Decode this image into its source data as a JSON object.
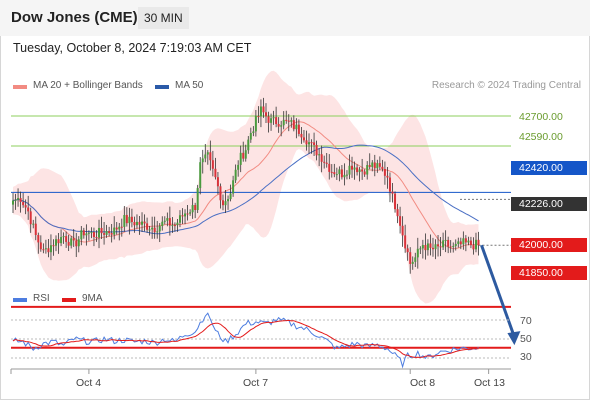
{
  "header": {
    "title": "Dow Jones (CME)",
    "interval": "30 MIN"
  },
  "datetime": "Tuesday, October 8, 2024 7:19:03 AM CET",
  "legend": [
    {
      "label": "MA 20 + Bollinger Bands",
      "color": "#f28b82"
    },
    {
      "label": "MA 50",
      "color": "#2b5aa8"
    }
  ],
  "copyright": "Research © 2024 Trading Central",
  "colors": {
    "up": "#4a9a3e",
    "down": "#d8323a",
    "wick": "#333333",
    "band_fill": "#fde4e4",
    "ma20": "#f28b82",
    "ma50": "#4a6fc4",
    "resistance_green": "#8ccf5c",
    "pivot_blue": "#1556c8",
    "support_red": "#e31b1b",
    "arrow": "#2d5aa0",
    "rsi": "#4d7de0",
    "rsi_ma": "#e31b1b"
  },
  "chart_data": [
    {
      "type": "candlestick",
      "title": "Dow Jones (CME)",
      "interval": "30 MIN",
      "ylim": [
        41800,
        42880
      ],
      "x_ticks": [
        "Oct 4",
        "Oct 7",
        "Oct 8",
        "Oct 13"
      ],
      "x_tick_index": [
        30,
        96,
        157,
        188
      ],
      "levels": [
        {
          "value": 42700.0,
          "label": "42700.00",
          "style": "green"
        },
        {
          "value": 42590.0,
          "label": "42590.00",
          "style": "green"
        },
        {
          "value": 42420.0,
          "label": "42420.00",
          "style": "blue"
        },
        {
          "value": 42226.0,
          "label": "42226.00",
          "style": "dark",
          "current": true
        },
        {
          "value": 42000.0,
          "label": "42000.00",
          "style": "red"
        },
        {
          "value": 41850.0,
          "label": "41850.00",
          "style": "red"
        }
      ],
      "forecast": {
        "from_index": 184,
        "from_value": 42226,
        "to_index": 197,
        "to_value": 41860
      },
      "series": [
        {
          "name": "MA 20 + Bollinger Bands",
          "kind": "bollinger"
        },
        {
          "name": "MA 50",
          "kind": "ma"
        }
      ],
      "price_anchors": [
        [
          0,
          42390
        ],
        [
          3,
          42400
        ],
        [
          6,
          42350
        ],
        [
          9,
          42260
        ],
        [
          12,
          42200
        ],
        [
          16,
          42235
        ],
        [
          20,
          42260
        ],
        [
          24,
          42225
        ],
        [
          28,
          42275
        ],
        [
          32,
          42265
        ],
        [
          36,
          42275
        ],
        [
          40,
          42280
        ],
        [
          44,
          42320
        ],
        [
          48,
          42310
        ],
        [
          52,
          42300
        ],
        [
          56,
          42290
        ],
        [
          60,
          42310
        ],
        [
          64,
          42300
        ],
        [
          68,
          42345
        ],
        [
          72,
          42370
        ],
        [
          74,
          42520
        ],
        [
          77,
          42550
        ],
        [
          80,
          42470
        ],
        [
          83,
          42380
        ],
        [
          86,
          42420
        ],
        [
          89,
          42530
        ],
        [
          92,
          42580
        ],
        [
          94,
          42640
        ],
        [
          98,
          42720
        ],
        [
          102,
          42680
        ],
        [
          106,
          42680
        ],
        [
          110,
          42670
        ],
        [
          114,
          42640
        ],
        [
          118,
          42590
        ],
        [
          122,
          42550
        ],
        [
          126,
          42500
        ],
        [
          130,
          42490
        ],
        [
          134,
          42520
        ],
        [
          138,
          42500
        ],
        [
          142,
          42520
        ],
        [
          146,
          42500
        ],
        [
          148,
          42480
        ],
        [
          150,
          42400
        ],
        [
          152,
          42350
        ],
        [
          154,
          42270
        ],
        [
          157,
          42160
        ],
        [
          159,
          42180
        ],
        [
          162,
          42230
        ],
        [
          165,
          42210
        ],
        [
          168,
          42215
        ],
        [
          171,
          42230
        ],
        [
          174,
          42215
        ],
        [
          178,
          42232
        ],
        [
          184,
          42226
        ]
      ]
    },
    {
      "type": "line",
      "title": "RSI",
      "series": [
        {
          "name": "RSI"
        },
        {
          "name": "9MA"
        }
      ],
      "ylim": [
        20,
        80
      ],
      "yticks": [
        70,
        50,
        30
      ],
      "reference_lines": [
        70,
        50,
        30
      ],
      "rsi_anchors": [
        [
          0,
          48
        ],
        [
          4,
          47
        ],
        [
          8,
          40
        ],
        [
          12,
          45
        ],
        [
          16,
          47
        ],
        [
          20,
          43
        ],
        [
          24,
          50
        ],
        [
          28,
          48
        ],
        [
          32,
          47
        ],
        [
          36,
          50
        ],
        [
          40,
          48
        ],
        [
          44,
          49
        ],
        [
          48,
          47
        ],
        [
          52,
          48
        ],
        [
          56,
          46
        ],
        [
          60,
          50
        ],
        [
          64,
          47
        ],
        [
          68,
          55
        ],
        [
          72,
          58
        ],
        [
          76,
          76
        ],
        [
          78,
          72
        ],
        [
          80,
          58
        ],
        [
          84,
          47
        ],
        [
          88,
          55
        ],
        [
          92,
          66
        ],
        [
          96,
          68
        ],
        [
          100,
          66
        ],
        [
          104,
          70
        ],
        [
          108,
          68
        ],
        [
          112,
          64
        ],
        [
          116,
          60
        ],
        [
          120,
          55
        ],
        [
          124,
          48
        ],
        [
          128,
          40
        ],
        [
          132,
          43
        ],
        [
          136,
          45
        ],
        [
          140,
          42
        ],
        [
          144,
          44
        ],
        [
          148,
          40
        ],
        [
          152,
          30
        ],
        [
          154,
          24
        ],
        [
          156,
          32
        ],
        [
          160,
          35
        ],
        [
          164,
          30
        ],
        [
          168,
          36
        ],
        [
          172,
          38
        ],
        [
          176,
          40
        ],
        [
          184,
          41
        ]
      ]
    }
  ]
}
